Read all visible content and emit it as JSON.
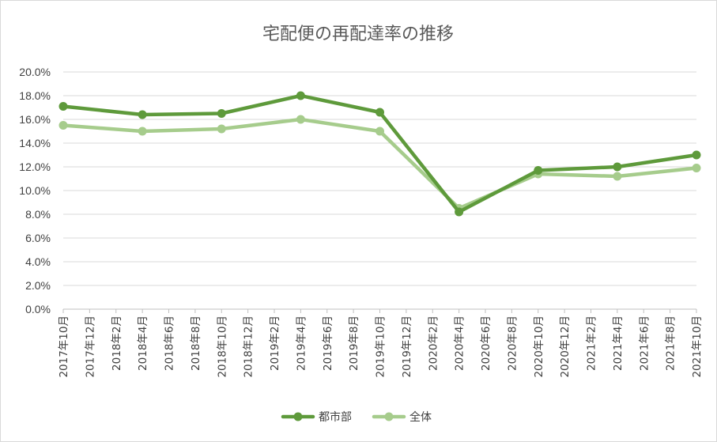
{
  "chart_data": {
    "type": "line",
    "title": "宅配便の再配達率の推移",
    "x": [
      "2017年10月",
      "2017年12月",
      "2018年2月",
      "2018年4月",
      "2018年6月",
      "2018年8月",
      "2018年10月",
      "2018年12月",
      "2019年2月",
      "2019年4月",
      "2019年6月",
      "2019年8月",
      "2019年10月",
      "2019年12月",
      "2020年2月",
      "2020年4月",
      "2020年6月",
      "2020年8月",
      "2020年10月",
      "2020年12月",
      "2021年2月",
      "2021年4月",
      "2021年6月",
      "2021年8月",
      "2021年10月"
    ],
    "yticks": [
      "0.0%",
      "2.0%",
      "4.0%",
      "6.0%",
      "8.0%",
      "10.0%",
      "12.0%",
      "14.0%",
      "16.0%",
      "18.0%",
      "20.0%"
    ],
    "ylim": [
      0,
      20
    ],
    "grid": true,
    "legend": "bottom-center",
    "series": [
      {
        "name": "都市部",
        "color": "#5e9a3b",
        "points": [
          [
            0,
            17.1
          ],
          [
            3,
            16.4
          ],
          [
            6,
            16.5
          ],
          [
            9,
            18.0
          ],
          [
            12,
            16.6
          ],
          [
            15,
            8.2
          ],
          [
            18,
            11.7
          ],
          [
            21,
            12.0
          ],
          [
            24,
            13.0
          ]
        ]
      },
      {
        "name": "全体",
        "color": "#a6cc8c",
        "points": [
          [
            0,
            15.5
          ],
          [
            3,
            15.0
          ],
          [
            6,
            15.2
          ],
          [
            9,
            16.0
          ],
          [
            12,
            15.0
          ],
          [
            15,
            8.5
          ],
          [
            18,
            11.4
          ],
          [
            21,
            11.2
          ],
          [
            24,
            11.9
          ]
        ]
      }
    ]
  }
}
